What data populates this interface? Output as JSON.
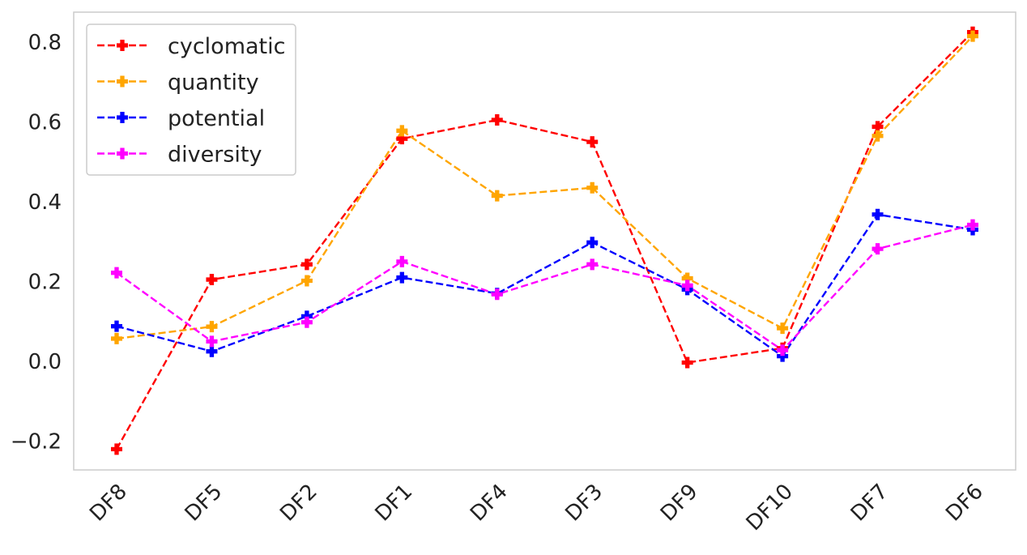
{
  "chart_data": {
    "type": "line",
    "categories": [
      "DF8",
      "DF5",
      "DF2",
      "DF1",
      "DF4",
      "DF3",
      "DF9",
      "DF10",
      "DF7",
      "DF6"
    ],
    "series": [
      {
        "name": "cyclomatic",
        "color": "#ff0000",
        "marker": "plus-filled",
        "linestyle": "dashed",
        "values": [
          -0.22,
          0.205,
          0.243,
          0.558,
          0.605,
          0.55,
          -0.003,
          0.033,
          0.588,
          0.825
        ]
      },
      {
        "name": "quantity",
        "color": "#ffa500",
        "marker": "plus-filled",
        "linestyle": "dashed",
        "values": [
          0.057,
          0.087,
          0.202,
          0.578,
          0.415,
          0.435,
          0.208,
          0.083,
          0.565,
          0.815
        ]
      },
      {
        "name": "potential",
        "color": "#0000ff",
        "marker": "plus-filled",
        "linestyle": "dashed",
        "values": [
          0.088,
          0.025,
          0.113,
          0.21,
          0.17,
          0.298,
          0.18,
          0.013,
          0.368,
          0.33
        ]
      },
      {
        "name": "diversity",
        "color": "#ff00ff",
        "marker": "plus-filled",
        "linestyle": "dashed",
        "values": [
          0.222,
          0.05,
          0.098,
          0.25,
          0.168,
          0.243,
          0.19,
          0.028,
          0.282,
          0.342
        ]
      }
    ],
    "y_ticks": [
      "−0.2",
      "0.0",
      "0.2",
      "0.4",
      "0.6",
      "0.8"
    ],
    "y_tick_values": [
      -0.2,
      0.0,
      0.2,
      0.4,
      0.6,
      0.8
    ],
    "ylim": [
      -0.27,
      0.875
    ],
    "title": "",
    "xlabel": "",
    "ylabel": "",
    "grid": false,
    "legend_position": "top-left"
  }
}
